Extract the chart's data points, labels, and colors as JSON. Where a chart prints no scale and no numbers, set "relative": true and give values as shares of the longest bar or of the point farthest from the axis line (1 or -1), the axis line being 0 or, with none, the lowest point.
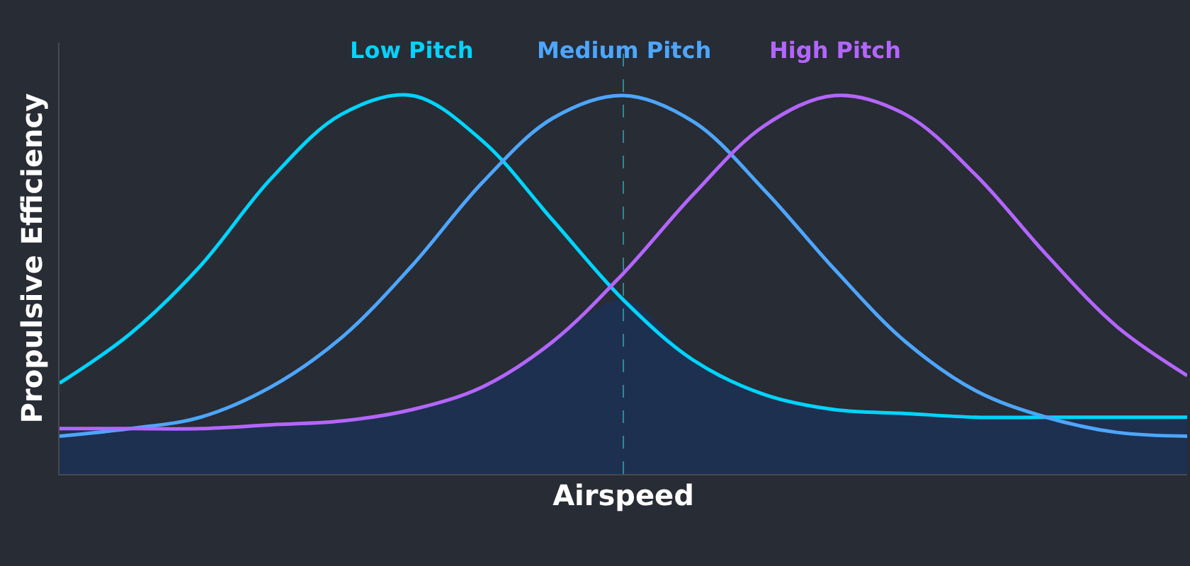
{
  "chart_data": {
    "type": "line",
    "relative": true,
    "xlabel": "Airspeed",
    "ylabel": "Propulsive Efficiency",
    "categories": [
      null,
      null,
      null,
      null,
      null,
      null,
      null,
      null,
      null,
      null,
      null,
      null,
      null,
      null,
      null,
      null,
      null
    ],
    "series": [
      {
        "name": "Low Pitch",
        "color": "#00d4ff",
        "values": [
          0.24,
          0.37,
          0.55,
          0.78,
          0.95,
          1.0,
          0.88,
          0.67,
          0.46,
          0.3,
          0.21,
          0.17,
          0.16,
          0.15,
          0.15,
          0.15,
          0.15
        ]
      },
      {
        "name": "Medium Pitch",
        "color": "#4da6ff",
        "values": [
          0.1,
          0.12,
          0.15,
          0.23,
          0.36,
          0.55,
          0.77,
          0.94,
          1.0,
          0.93,
          0.75,
          0.54,
          0.35,
          0.22,
          0.15,
          0.11,
          0.1
        ]
      },
      {
        "name": "High Pitch",
        "color": "#b366ff",
        "values": [
          0.12,
          0.12,
          0.12,
          0.13,
          0.14,
          0.17,
          0.23,
          0.35,
          0.53,
          0.74,
          0.92,
          1.0,
          0.95,
          0.79,
          0.58,
          0.39,
          0.26
        ]
      },
      {
        "type": "area",
        "color": "#1e3050",
        "values": [
          0.12,
          0.12,
          0.12,
          0.13,
          0.14,
          0.17,
          0.23,
          0.35,
          0.46,
          0.3,
          0.21,
          0.17,
          0.16,
          0.15,
          0.15,
          0.15,
          0.15
        ]
      }
    ],
    "grid": false,
    "legend": false
  }
}
